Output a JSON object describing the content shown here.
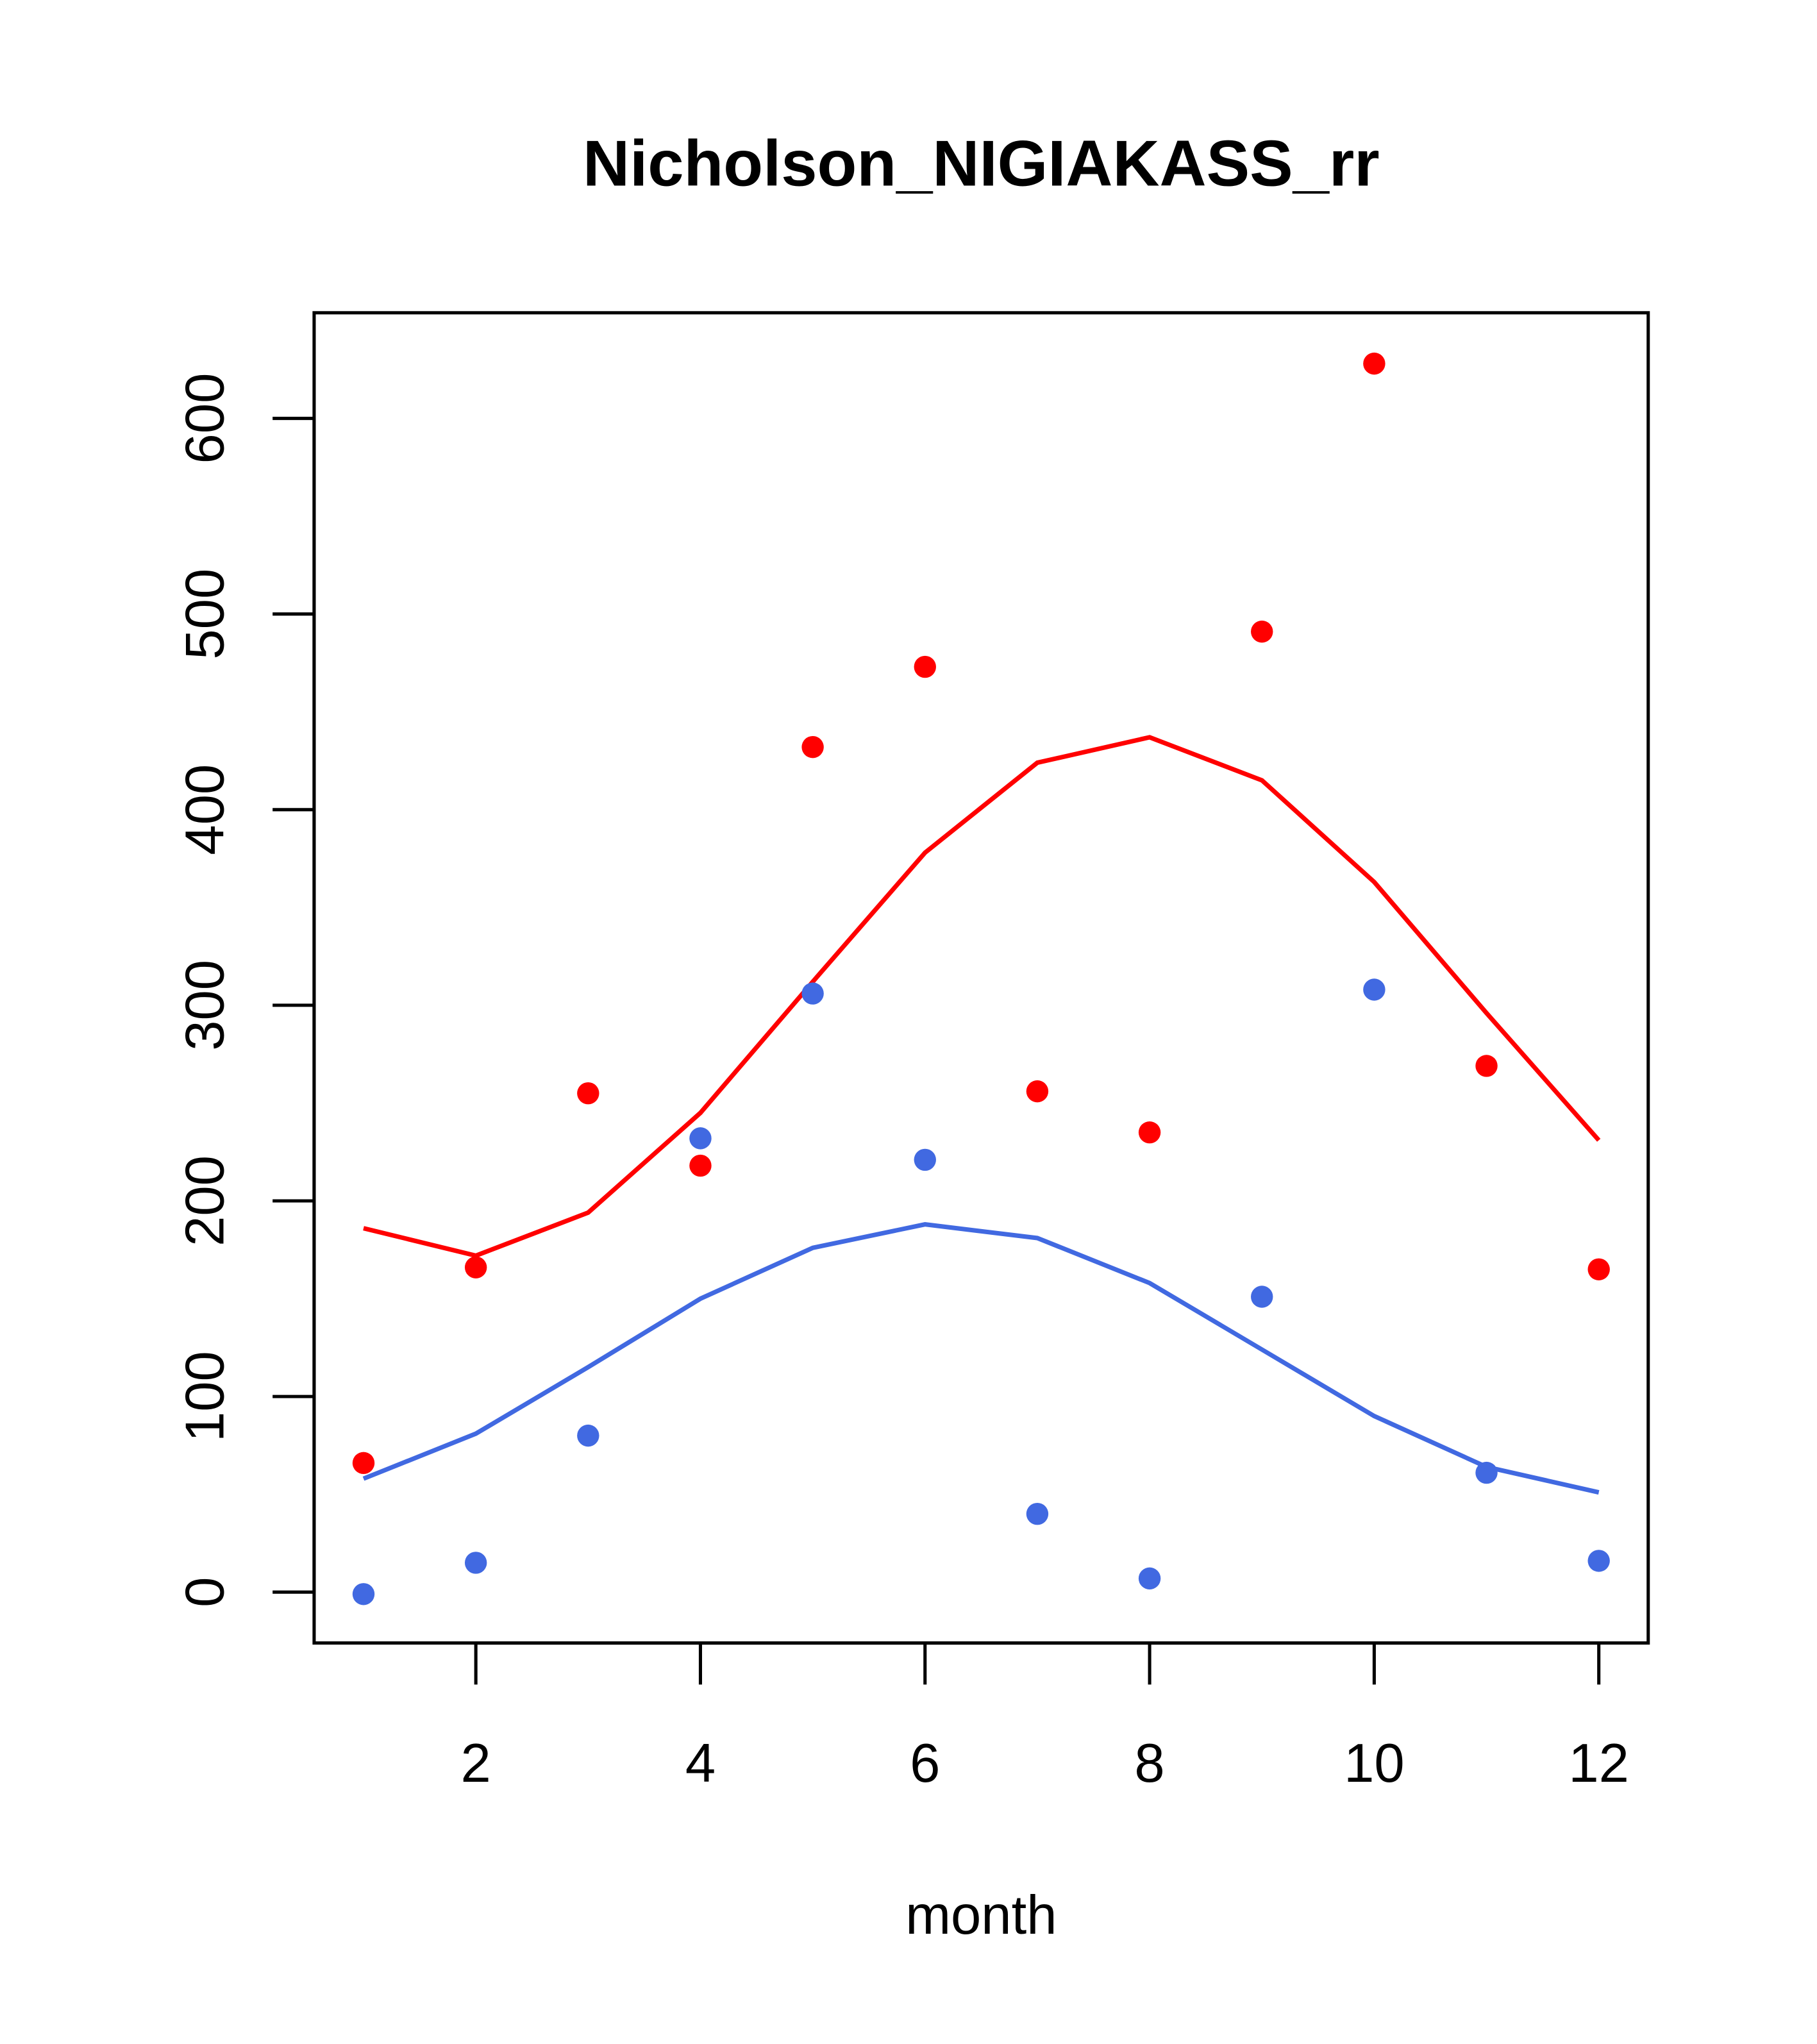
{
  "chart_data": {
    "type": "scatter",
    "title": "Nicholson_NIGIAKASS_rr",
    "xlabel": "month",
    "ylabel": "",
    "xlim": [
      0.56,
      12.44
    ],
    "ylim": [
      -26,
      654
    ],
    "xticks": [
      2,
      4,
      6,
      8,
      10,
      12
    ],
    "xtick_labels": [
      "2",
      "4",
      "6",
      "8",
      "10",
      "12"
    ],
    "yticks": [
      0,
      100,
      200,
      300,
      400,
      500,
      600
    ],
    "ytick_labels": [
      "0",
      "100",
      "200",
      "300",
      "400",
      "500",
      "600"
    ],
    "grid": false,
    "x": [
      1,
      2,
      3,
      4,
      5,
      6,
      7,
      8,
      9,
      10,
      11,
      12
    ],
    "series": [
      {
        "name": "red points",
        "kind": "points",
        "color": "#ff0000",
        "values": [
          66,
          166,
          255,
          218,
          432,
          473,
          256,
          235,
          491,
          628,
          269,
          165
        ]
      },
      {
        "name": "red line",
        "kind": "line",
        "color": "#ff0000",
        "values": [
          186,
          172,
          194,
          245,
          312,
          378,
          424,
          437,
          415,
          363,
          296,
          231
        ]
      },
      {
        "name": "blue points",
        "kind": "points",
        "color": "#4169e1",
        "values": [
          -1,
          15,
          80,
          232,
          306,
          221,
          40,
          7,
          151,
          308,
          61,
          16
        ]
      },
      {
        "name": "blue line",
        "kind": "line",
        "color": "#4169e1",
        "values": [
          58,
          81,
          115,
          150,
          176,
          188,
          181,
          158,
          124,
          90,
          64,
          51
        ]
      }
    ]
  }
}
